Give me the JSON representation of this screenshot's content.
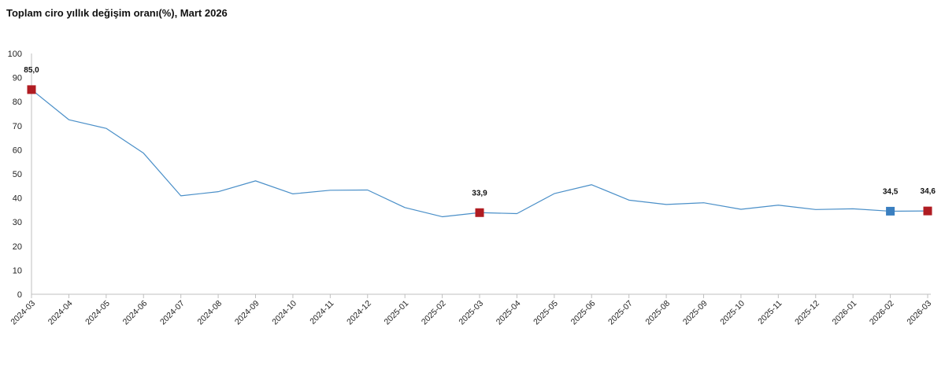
{
  "chart_data": {
    "type": "line",
    "title": "Toplam ciro yıllık değişim oranı(%), Mart 2026",
    "xlabel": "",
    "ylabel": "",
    "ylim": [
      0,
      100
    ],
    "yticks": [
      0,
      10,
      20,
      30,
      40,
      50,
      60,
      70,
      80,
      90,
      100
    ],
    "grid": false,
    "categories": [
      "2024-03",
      "2024-04",
      "2024-05",
      "2024-06",
      "2024-07",
      "2024-08",
      "2024-09",
      "2024-10",
      "2024-11",
      "2024-12",
      "2025-01",
      "2025-02",
      "2025-03",
      "2025-04",
      "2025-05",
      "2025-06",
      "2025-07",
      "2025-08",
      "2025-09",
      "2025-10",
      "2025-11",
      "2025-12",
      "2026-01",
      "2026-02",
      "2026-03"
    ],
    "series": [
      {
        "color": "#4a8fc8",
        "values": [
          85.0,
          72.5,
          68.9,
          58.6,
          40.9,
          42.6,
          47.1,
          41.7,
          43.2,
          43.3,
          36.0,
          32.2,
          33.9,
          33.5,
          41.8,
          45.5,
          39.1,
          37.3,
          38.0,
          35.3,
          37.0,
          35.2,
          35.5,
          34.5,
          34.6
        ]
      }
    ],
    "markers": [
      {
        "category": "2024-03",
        "value": 85.0,
        "label": "85,0",
        "color": "#b01c22"
      },
      {
        "category": "2025-03",
        "value": 33.9,
        "label": "33,9",
        "color": "#b01c22"
      },
      {
        "category": "2026-02",
        "value": 34.5,
        "label": "34,5",
        "color": "#3a7fc0"
      },
      {
        "category": "2026-03",
        "value": 34.6,
        "label": "34,6",
        "color": "#b01c22"
      }
    ],
    "axis_color": "#bfbfbf"
  }
}
